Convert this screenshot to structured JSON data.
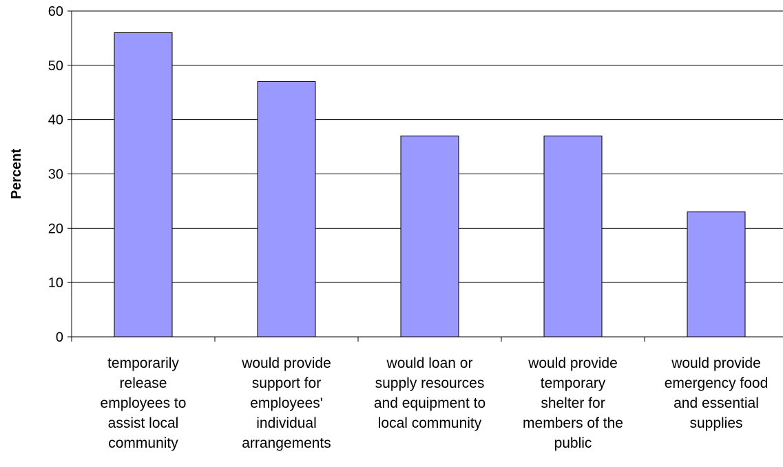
{
  "chart_data": {
    "type": "bar",
    "title": "",
    "xlabel": "",
    "ylabel": "Percent",
    "ylim": [
      0,
      60
    ],
    "yticks": [
      0,
      10,
      20,
      30,
      40,
      50,
      60
    ],
    "grid": true,
    "bar_color": "#9999FF",
    "categories": [
      [
        "temporarily",
        "release",
        "employees to",
        "assist local",
        "community"
      ],
      [
        "would provide",
        "support for",
        "employees'",
        "individual",
        "arrangements"
      ],
      [
        "would loan or",
        "supply resources",
        "and equipment to",
        "local community"
      ],
      [
        "would provide",
        "temporary",
        "shelter for",
        "members of the",
        "public"
      ],
      [
        "would provide",
        "emergency food",
        "and essential",
        "supplies"
      ]
    ],
    "values": [
      56,
      47,
      37,
      37,
      23
    ]
  }
}
